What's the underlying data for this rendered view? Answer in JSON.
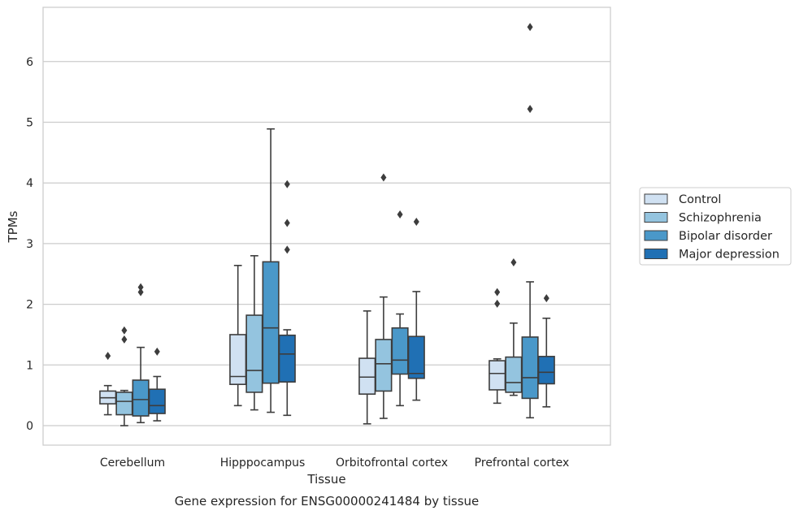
{
  "chart_data": {
    "type": "box",
    "title": "Gene expression for ENSG00000241484 by tissue",
    "xlabel": "Tissue",
    "ylabel": "TPMs",
    "ylim": [
      -0.32,
      6.92
    ],
    "yticks": [
      0,
      1,
      2,
      3,
      4,
      5,
      6
    ],
    "grid": "horizontal",
    "legend_position": "right",
    "categories": [
      "Cerebellum",
      "Hipppocampus",
      "Orbitofrontal cortex",
      "Prefrontal cortex"
    ],
    "series": [
      {
        "name": "Control",
        "color": "#d0e1f2",
        "boxes": [
          {
            "whislo": 0.18,
            "q1": 0.36,
            "med": 0.46,
            "q3": 0.57,
            "whishi": 0.66,
            "fliers": [
              1.15
            ]
          },
          {
            "whislo": 0.33,
            "q1": 0.68,
            "med": 0.81,
            "q3": 1.5,
            "whishi": 2.64,
            "fliers": []
          },
          {
            "whislo": 0.03,
            "q1": 0.52,
            "med": 0.8,
            "q3": 1.11,
            "whishi": 1.89,
            "fliers": []
          },
          {
            "whislo": 0.37,
            "q1": 0.59,
            "med": 0.86,
            "q3": 1.07,
            "whishi": 1.1,
            "fliers": [
              2.2,
              2.01
            ]
          }
        ]
      },
      {
        "name": "Schizophrenia",
        "color": "#94c4df",
        "boxes": [
          {
            "whislo": 0.0,
            "q1": 0.18,
            "med": 0.4,
            "q3": 0.55,
            "whishi": 0.58,
            "fliers": [
              1.57,
              1.42
            ]
          },
          {
            "whislo": 0.26,
            "q1": 0.55,
            "med": 0.91,
            "q3": 1.82,
            "whishi": 2.8,
            "fliers": []
          },
          {
            "whislo": 0.12,
            "q1": 0.57,
            "med": 1.02,
            "q3": 1.42,
            "whishi": 2.12,
            "fliers": [
              4.09
            ]
          },
          {
            "whislo": 0.5,
            "q1": 0.55,
            "med": 0.71,
            "q3": 1.13,
            "whishi": 1.69,
            "fliers": [
              2.69
            ]
          }
        ]
      },
      {
        "name": "Bipolar disorder",
        "color": "#4a98c9",
        "boxes": [
          {
            "whislo": 0.05,
            "q1": 0.16,
            "med": 0.43,
            "q3": 0.75,
            "whishi": 1.29,
            "fliers": [
              2.28,
              2.2
            ]
          },
          {
            "whislo": 0.22,
            "q1": 0.7,
            "med": 1.61,
            "q3": 2.7,
            "whishi": 4.89,
            "fliers": []
          },
          {
            "whislo": 0.33,
            "q1": 0.85,
            "med": 1.08,
            "q3": 1.61,
            "whishi": 1.84,
            "fliers": [
              3.48
            ]
          },
          {
            "whislo": 0.13,
            "q1": 0.45,
            "med": 0.79,
            "q3": 1.46,
            "whishi": 2.37,
            "fliers": [
              6.57,
              5.22
            ]
          }
        ]
      },
      {
        "name": "Major depression",
        "color": "#2070b4",
        "boxes": [
          {
            "whislo": 0.08,
            "q1": 0.2,
            "med": 0.33,
            "q3": 0.6,
            "whishi": 0.81,
            "fliers": [
              1.22
            ]
          },
          {
            "whislo": 0.17,
            "q1": 0.72,
            "med": 1.18,
            "q3": 1.49,
            "whishi": 1.58,
            "fliers": [
              3.98,
              3.34,
              2.9
            ]
          },
          {
            "whislo": 0.42,
            "q1": 0.78,
            "med": 0.86,
            "q3": 1.47,
            "whishi": 2.21,
            "fliers": [
              3.36
            ]
          },
          {
            "whislo": 0.31,
            "q1": 0.69,
            "med": 0.88,
            "q3": 1.14,
            "whishi": 1.77,
            "fliers": [
              2.1
            ]
          }
        ]
      }
    ]
  }
}
